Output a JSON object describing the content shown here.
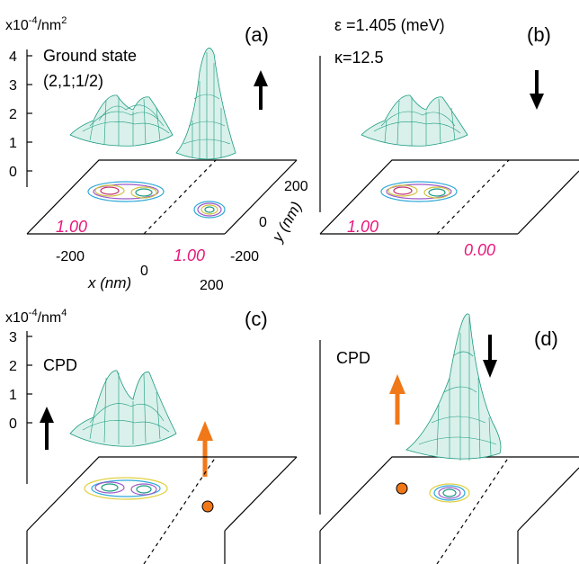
{
  "figure": {
    "panels": [
      {
        "id": "a",
        "label": "(a)",
        "yunit": "x10-4/nm2",
        "yticks": [
          "4",
          "3",
          "2",
          "1",
          "0"
        ],
        "text": [
          "Ground state",
          "(2,1;1/2)"
        ],
        "weights": [
          "1.00",
          "1.00"
        ],
        "spin": "up",
        "xaxis": {
          "label": "x (nm)",
          "ticks": [
            "-200",
            "0",
            "200"
          ]
        },
        "yaxis": {
          "label": "y (nm)",
          "ticks": [
            "200",
            "0",
            "-200"
          ]
        }
      },
      {
        "id": "b",
        "label": "(b)",
        "text": [
          "ε =1.405 (meV)",
          "κ=12.5"
        ],
        "weights": [
          "1.00",
          "0.00"
        ],
        "spin": "down"
      },
      {
        "id": "c",
        "label": "(c)",
        "yunit": "x10-4/nm4",
        "yticks": [
          "3",
          "2",
          "1",
          "0"
        ],
        "text": [
          "CPD"
        ],
        "spin": "up",
        "fixed_spin": "up"
      },
      {
        "id": "d",
        "label": "(d)",
        "text": [
          "CPD"
        ],
        "spin": "down",
        "fixed_spin": "up"
      }
    ],
    "colors": {
      "surface": "#1a9a80",
      "surface_fill": "#d9f1ea",
      "weight_text": "#e8177a",
      "fixed_arrow": "#f07818",
      "fixed_dot": "#f07818"
    }
  }
}
